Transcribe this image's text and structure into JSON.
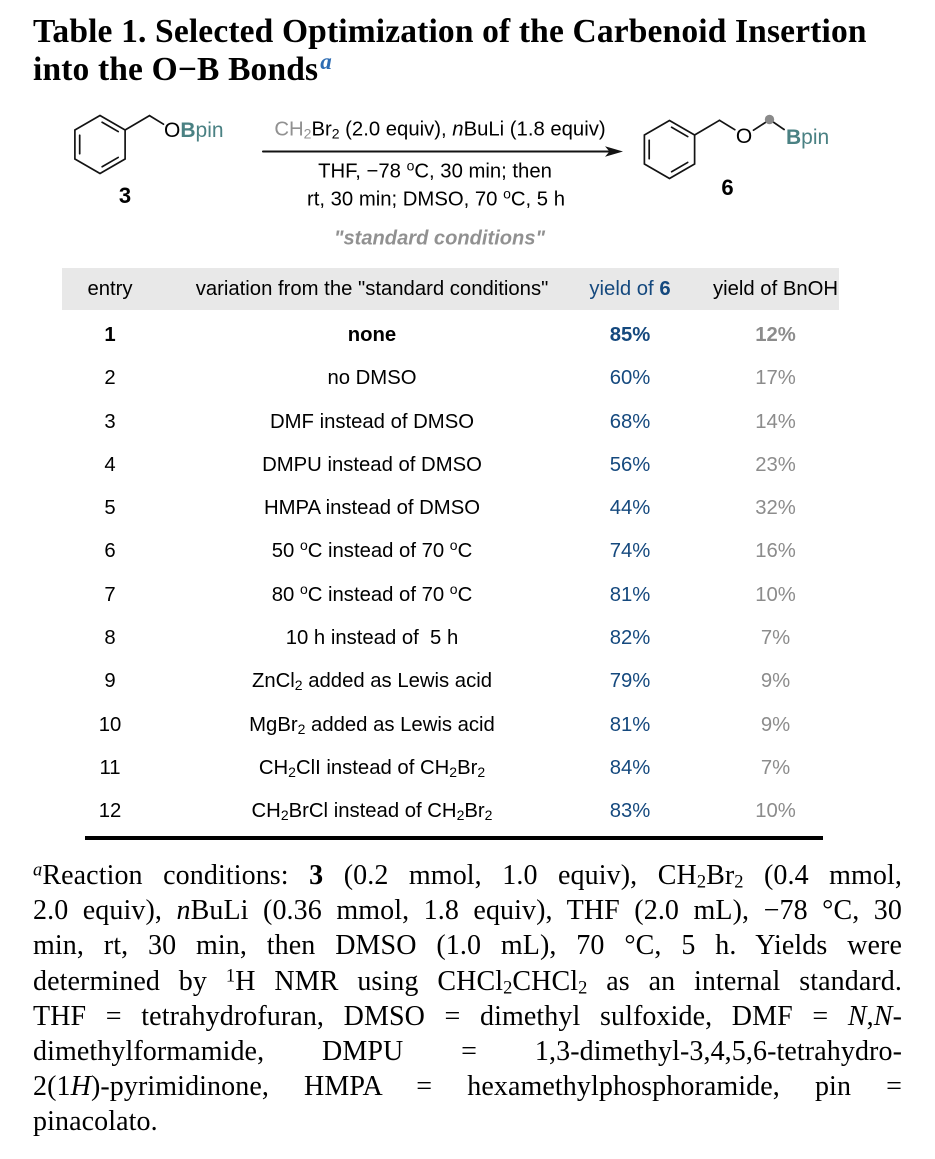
{
  "colors": {
    "blue": "#15497e",
    "titleblue": "#2d6cb3",
    "teal": "#4a8183",
    "graytxt": "#8c8c8c",
    "chemgray": "#919191",
    "barbg": "#e8e8e8"
  },
  "title": {
    "line1": "Table 1. Selected Optimization of the Carbenoid Insertion",
    "line2": "into the O−B Bonds",
    "marker": "a"
  },
  "scheme": {
    "reactant": {
      "label": "3",
      "atom_o": "O",
      "atom_b": "B",
      "atom_pin": "pin"
    },
    "product": {
      "label": "6",
      "atom_o": "O",
      "atom_b": "B",
      "atom_pin": "pin"
    },
    "arrow": {
      "above_gray": "CH_{2}",
      "above_rest": "Br_{2} (2.0 equiv), *n*BuLi (1.8 equiv)",
      "below_line1": "THF, −78 ^{o}C, 30 min; then",
      "below_line2": "rt, 30 min; DMSO, 70 ^{o}C, 5 h",
      "note": "\"standard conditions\""
    }
  },
  "table": {
    "headers": {
      "entry": "entry",
      "variation": "variation from the \"standard conditions\"",
      "yield6": "yield of !{6}",
      "bnoh": "yield of BnOH"
    },
    "rows": [
      {
        "entry": "1",
        "variation": "none",
        "yield6": "85%",
        "bnoh": "12%",
        "bold": true
      },
      {
        "entry": "2",
        "variation": "no DMSO",
        "yield6": "60%",
        "bnoh": "17%",
        "bold": false
      },
      {
        "entry": "3",
        "variation": "DMF instead of DMSO",
        "yield6": "68%",
        "bnoh": "14%",
        "bold": false
      },
      {
        "entry": "4",
        "variation": "DMPU instead of DMSO",
        "yield6": "56%",
        "bnoh": "23%",
        "bold": false
      },
      {
        "entry": "5",
        "variation": "HMPA instead of DMSO",
        "yield6": "44%",
        "bnoh": "32%",
        "bold": false
      },
      {
        "entry": "6",
        "variation": "50 ^{o}C instead of 70 ^{o}C",
        "yield6": "74%",
        "bnoh": "16%",
        "bold": false
      },
      {
        "entry": "7",
        "variation": "80 ^{o}C instead of 70 ^{o}C",
        "yield6": "81%",
        "bnoh": "10%",
        "bold": false
      },
      {
        "entry": "8",
        "variation": "10 h instead of  5 h",
        "yield6": "82%",
        "bnoh": "7%",
        "bold": false
      },
      {
        "entry": "9",
        "variation": "ZnCl_{2} added as Lewis acid",
        "yield6": "79%",
        "bnoh": "9%",
        "bold": false
      },
      {
        "entry": "10",
        "variation": "MgBr_{2} added as Lewis acid",
        "yield6": "81%",
        "bnoh": "9%",
        "bold": false
      },
      {
        "entry": "11",
        "variation": "CH_{2}ClI instead of CH_{2}Br_{2}",
        "yield6": "84%",
        "bnoh": "7%",
        "bold": false
      },
      {
        "entry": "12",
        "variation": "CH_{2}BrCl instead of CH_{2}Br_{2}",
        "yield6": "83%",
        "bnoh": "10%",
        "bold": false
      }
    ]
  },
  "footnote": {
    "lines": [
      "^{*a*}Reaction conditions: !{3} (0.2 mmol, 1.0 equiv), CH_{2}Br_{2} (0.4 mmol,",
      "2.0 equiv), *n*BuLi (0.36 mmol, 1.8 equiv), THF (2.0 mL), −78 °C, 30",
      "min, rt, 30 min, then DMSO (1.0 mL), 70 °C, 5 h. Yields were",
      "determined by ^{1}H NMR using CHCl_{2}CHCl_{2} as an internal standard.",
      "THF = tetrahydrofuran, DMSO = dimethyl sulfoxide, DMF = *N*,*N*-",
      "dimethylformamide, DMPU = 1,3-dimethyl-3,4,5,6-tetrahydro-",
      "2(1*H*)-pyrimidinone, HMPA = hexamethylphosphoramide, pin =",
      "pinacolato."
    ]
  }
}
